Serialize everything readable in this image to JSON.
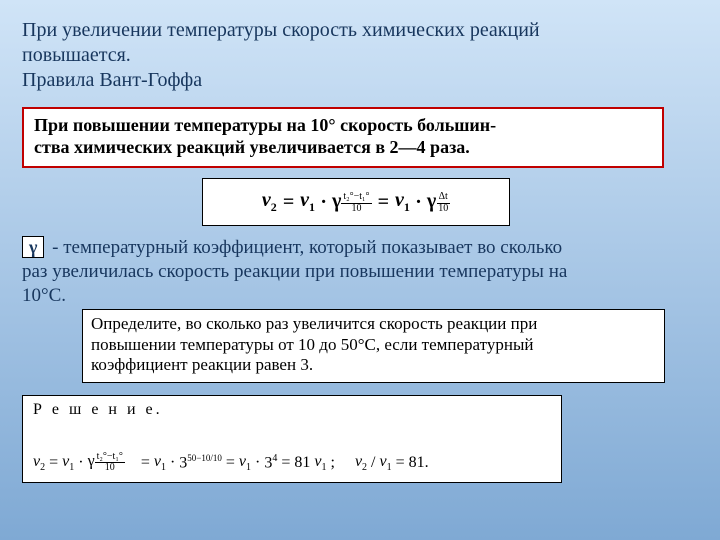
{
  "colors": {
    "background_top": "#d0e4f7",
    "background_bottom": "#7fa9d4",
    "heading_text": "#17365d",
    "box_border_rule": "#c00000",
    "box_border": "#000000",
    "box_bg": "#ffffff",
    "body_text": "#000000"
  },
  "typography": {
    "family": "Times New Roman",
    "intro_fontsize_pt": 15,
    "box_fontsize_pt": 14,
    "formula_fontsize_pt": 15,
    "solution_fontsize_pt": 12
  },
  "intro": {
    "line1": "При увеличении температуры скорость химических реакций",
    "line2": "повышается.",
    "line3": "Правила Вант-Гоффа"
  },
  "rule": {
    "line1_a": "При повышении температуры на 10° скорость большин-",
    "line2_a": "ства химических реакций увеличивается в 2—4 раза."
  },
  "formula": {
    "lhs": "v",
    "lhs_sub": "2",
    "eq": "=",
    "v1": "v",
    "v1_sub": "1",
    "dot": "·",
    "gamma": "γ",
    "exp_num": "t₂°−t₁°",
    "exp_den": "10",
    "eq2": "=",
    "exp2_num": "Δt",
    "exp2_den": "10"
  },
  "gamma_symbol": "γ",
  "explain": {
    "part1": " - температурный коэффициент, который показывает во сколько",
    "part2": "раз увеличилась скорость реакции при повышении температуры на",
    "part3": "10°С."
  },
  "problem": {
    "l1": "Определите, во сколько раз увеличится скорость реакции при",
    "l2": "повышении температуры от 10 до 50°С, если температурный",
    "l3": "коэффициент реакции равен 3."
  },
  "solution": {
    "title": "Р е ш е н и е.",
    "v2": "v",
    "v2s": "2",
    "eq": "=",
    "v1": "v",
    "v1s": "1",
    "dot": "·",
    "g": "γ",
    "exp1_num": "t₂°−t₁°",
    "exp1_den": "10",
    "eq2": "=",
    "three": "3",
    "exp2": "50−10/10",
    "eq3": "=",
    "three2": "3",
    "exp3": "4",
    "eq4": "=",
    "res": "81",
    "semi": ";",
    "ratio_l": "v",
    "ratio_ls": "2",
    "slash": "/",
    "ratio_r": "v",
    "ratio_rs": "1",
    "eq5": "=",
    "res2": "81."
  }
}
